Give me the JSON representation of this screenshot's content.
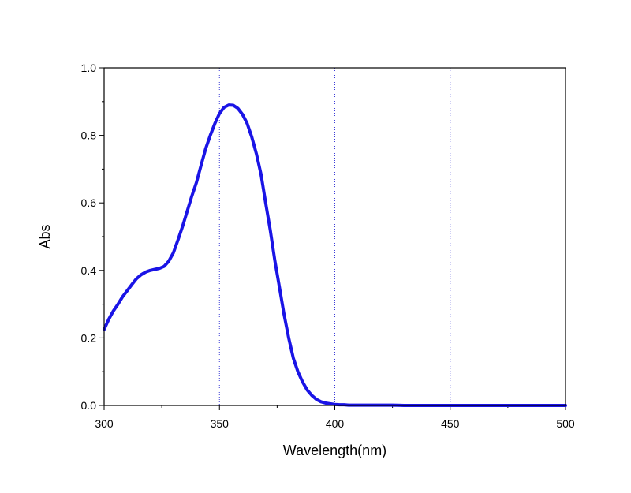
{
  "chart_data": {
    "type": "line",
    "title": "",
    "xlabel": "Wavelength(nm)",
    "ylabel": "Abs",
    "xlim": [
      300,
      500
    ],
    "ylim": [
      0.0,
      1.0
    ],
    "x_major_ticks": [
      300,
      350,
      400,
      450,
      500
    ],
    "x_tick_labels": [
      "300",
      "350",
      "400",
      "450",
      "500"
    ],
    "y_major_ticks": [
      0.0,
      0.2,
      0.4,
      0.6,
      0.8,
      1.0
    ],
    "y_tick_labels": [
      "0.0",
      "0.2",
      "0.4",
      "0.6",
      "0.8",
      "1.0"
    ],
    "vertical_gridlines_at": [
      350,
      400,
      450
    ],
    "grid": "vertical dotted at major x ticks",
    "legend": "none",
    "series": [
      {
        "color": "#1a14e6",
        "x": [
          300,
          302,
          304,
          306,
          308,
          310,
          312,
          314,
          316,
          318,
          320,
          322,
          324,
          326,
          328,
          330,
          332,
          334,
          336,
          338,
          340,
          342,
          344,
          346,
          348,
          350,
          352,
          354,
          356,
          358,
          360,
          362,
          364,
          366,
          368,
          370,
          372,
          374,
          376,
          378,
          380,
          382,
          384,
          386,
          388,
          390,
          392,
          394,
          396,
          398,
          400,
          402,
          404,
          406,
          408,
          410,
          412,
          414,
          416,
          418,
          420,
          425,
          430,
          440,
          450,
          460,
          470,
          480,
          490,
          500
        ],
        "y": [
          0.225,
          0.255,
          0.28,
          0.3,
          0.322,
          0.34,
          0.358,
          0.375,
          0.387,
          0.395,
          0.4,
          0.403,
          0.406,
          0.412,
          0.427,
          0.452,
          0.49,
          0.53,
          0.575,
          0.62,
          0.66,
          0.71,
          0.76,
          0.8,
          0.835,
          0.865,
          0.883,
          0.89,
          0.889,
          0.88,
          0.862,
          0.835,
          0.795,
          0.745,
          0.685,
          0.6,
          0.52,
          0.43,
          0.35,
          0.27,
          0.2,
          0.14,
          0.1,
          0.07,
          0.046,
          0.03,
          0.018,
          0.011,
          0.007,
          0.005,
          0.003,
          0.002,
          0.002,
          0.001,
          0.001,
          0.001,
          0.001,
          0.001,
          0.001,
          0.001,
          0.001,
          0.001,
          0.0,
          0.0,
          0.0,
          0.0,
          0.0,
          0.0,
          0.0,
          0.0
        ]
      }
    ]
  }
}
